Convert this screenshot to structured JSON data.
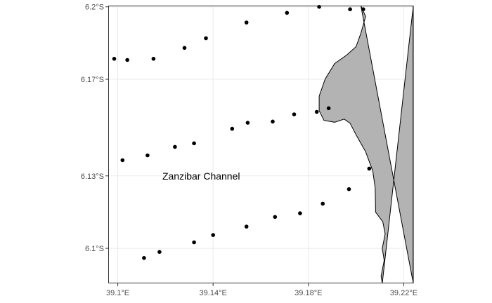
{
  "chart_data": {
    "type": "scatter",
    "title": "",
    "xlabel": "",
    "ylabel": "",
    "xlim": [
      39.096,
      39.224
    ],
    "ylim": [
      6.2005,
      6.0855
    ],
    "y_hemisphere": "S",
    "grid": true,
    "background": "#ffffff",
    "annotations": [
      {
        "text": "Zanzibar Channel",
        "x": 39.135,
        "y": 6.13
      }
    ],
    "x_ticks": [
      {
        "value": 39.1,
        "label": "39.1°E"
      },
      {
        "value": 39.14,
        "label": "39.14°E"
      },
      {
        "value": 39.18,
        "label": "39.18°E"
      },
      {
        "value": 39.22,
        "label": "39.22°E"
      }
    ],
    "y_ticks": [
      {
        "value": 6.1,
        "label": "6.1°S"
      },
      {
        "value": 6.13,
        "label": "6.13°S"
      },
      {
        "value": 6.17,
        "label": "6.17°S"
      },
      {
        "value": 6.2,
        "label": "6.2°S"
      }
    ],
    "land": {
      "fill": "#b3b3b3",
      "stroke": "#000000",
      "coastline": [
        [
          39.211,
          6.0855
        ],
        [
          39.2105,
          6.0885
        ],
        [
          39.2118,
          6.095
        ],
        [
          39.211,
          6.1
        ],
        [
          39.2122,
          6.106
        ],
        [
          39.2112,
          6.111
        ],
        [
          39.2082,
          6.115
        ],
        [
          39.208,
          6.125
        ],
        [
          39.207,
          6.132
        ],
        [
          39.204,
          6.14
        ],
        [
          39.2,
          6.147
        ],
        [
          39.1975,
          6.1518
        ],
        [
          39.195,
          6.1535
        ],
        [
          39.191,
          6.1522
        ],
        [
          39.1865,
          6.153
        ],
        [
          39.1845,
          6.157
        ],
        [
          39.1845,
          6.163
        ],
        [
          39.187,
          6.17
        ],
        [
          39.191,
          6.1765
        ],
        [
          39.196,
          6.18
        ],
        [
          39.2,
          6.1835
        ],
        [
          39.202,
          6.189
        ],
        [
          39.204,
          6.196
        ],
        [
          39.202,
          6.2005
        ]
      ]
    },
    "series": [
      {
        "marker": "#000000",
        "points": [
          {
            "x": 39.111,
            "y": 6.096
          },
          {
            "x": 39.1175,
            "y": 6.0985
          },
          {
            "x": 39.132,
            "y": 6.1025
          },
          {
            "x": 39.14,
            "y": 6.1055
          },
          {
            "x": 39.154,
            "y": 6.109
          },
          {
            "x": 39.166,
            "y": 6.113
          },
          {
            "x": 39.1765,
            "y": 6.1145
          },
          {
            "x": 39.186,
            "y": 6.1185
          },
          {
            "x": 39.197,
            "y": 6.1245
          },
          {
            "x": 39.2055,
            "y": 6.133
          },
          {
            "x": 39.102,
            "y": 6.1365
          },
          {
            "x": 39.1125,
            "y": 6.1385
          },
          {
            "x": 39.124,
            "y": 6.142
          },
          {
            "x": 39.132,
            "y": 6.1435
          },
          {
            "x": 39.148,
            "y": 6.1495
          },
          {
            "x": 39.1545,
            "y": 6.152
          },
          {
            "x": 39.165,
            "y": 6.1525
          },
          {
            "x": 39.174,
            "y": 6.1555
          },
          {
            "x": 39.1835,
            "y": 6.1565
          },
          {
            "x": 39.1885,
            "y": 6.158
          },
          {
            "x": 39.0985,
            "y": 6.1785
          },
          {
            "x": 39.104,
            "y": 6.178
          },
          {
            "x": 39.115,
            "y": 6.1785
          },
          {
            "x": 39.128,
            "y": 6.183
          },
          {
            "x": 39.137,
            "y": 6.187
          },
          {
            "x": 39.154,
            "y": 6.1935
          },
          {
            "x": 39.171,
            "y": 6.1975
          },
          {
            "x": 39.1845,
            "y": 6.2
          },
          {
            "x": 39.1975,
            "y": 6.199
          },
          {
            "x": 39.203,
            "y": 6.199
          }
        ]
      }
    ]
  }
}
